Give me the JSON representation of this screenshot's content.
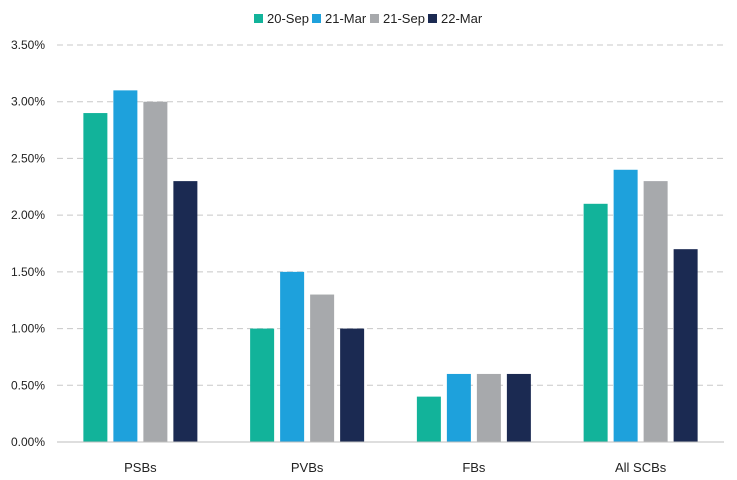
{
  "chart_data": {
    "type": "bar",
    "categories": [
      "PSBs",
      "PVBs",
      "FBs",
      "All SCBs"
    ],
    "series": [
      {
        "name": "20-Sep",
        "color": "#12b39a",
        "values": [
          2.9,
          1.0,
          0.4,
          2.1
        ]
      },
      {
        "name": "21-Mar",
        "color": "#1ea1dc",
        "values": [
          3.1,
          1.5,
          0.6,
          2.4
        ]
      },
      {
        "name": "21-Sep",
        "color": "#a7a9ac",
        "values": [
          3.0,
          1.3,
          0.6,
          2.3
        ]
      },
      {
        "name": "22-Mar",
        "color": "#1b2a52",
        "values": [
          2.3,
          1.0,
          0.6,
          1.7
        ]
      }
    ],
    "yticks": [
      "0.00%",
      "0.50%",
      "1.00%",
      "1.50%",
      "2.00%",
      "2.50%",
      "3.00%",
      "3.50%"
    ],
    "ylim": [
      0,
      3.5
    ],
    "grid": true,
    "legend_position": "top-center",
    "title": "",
    "xlabel": "",
    "ylabel": ""
  }
}
